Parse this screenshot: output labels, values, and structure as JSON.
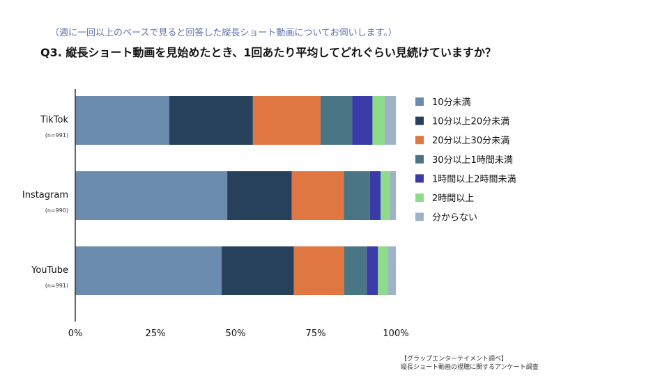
{
  "header": {
    "subtitle": "（週に一回以上のペースで見ると回答した縦長ショート動画についてお伺いします。）",
    "title": "Q3. 縦長ショート動画を見始めたとき、1回あたり平均してどれぐらい見続けていますか？"
  },
  "source": {
    "line1": "【グラップエンターテイメント調べ】",
    "line2": "縦長ショート動画の視聴に関するアンケート調査"
  },
  "chart_data": {
    "type": "bar",
    "orientation": "horizontal",
    "stacked": true,
    "title": "Q3. 縦長ショート動画を見始めたとき、1回あたり平均してどれぐらい見続けていますか？",
    "categories": [
      "TikTok",
      "Instagram",
      "YouTube"
    ],
    "category_notes": [
      "(n=991)",
      "(n=990)",
      "(n=991)"
    ],
    "xlim": [
      0,
      100
    ],
    "x_ticks": [
      "0%",
      "25%",
      "50%",
      "75%",
      "100%"
    ],
    "x_tick_values": [
      0,
      25,
      50,
      75,
      100
    ],
    "legend_position": "right",
    "series": [
      {
        "name": "10分未満",
        "color": "#6b8cae",
        "values": [
          29.3,
          47.6,
          45.8
        ]
      },
      {
        "name": "10分以上20分未満",
        "color": "#27405c",
        "values": [
          26.1,
          20.2,
          22.6
        ]
      },
      {
        "name": "20分以上30分未満",
        "color": "#e07742",
        "values": [
          21.1,
          16.3,
          15.7
        ]
      },
      {
        "name": "30分以上1時間未満",
        "color": "#4a7585",
        "values": [
          9.9,
          8.2,
          7.1
        ]
      },
      {
        "name": "1時間以上2時間未満",
        "color": "#3a3aa8",
        "values": [
          6.3,
          3.3,
          3.5
        ]
      },
      {
        "name": "2時間以上",
        "color": "#8edc8a",
        "values": [
          3.8,
          2.9,
          3.1
        ]
      },
      {
        "name": "分からない",
        "color": "#9fb3c6",
        "values": [
          3.5,
          1.9,
          2.5
        ]
      }
    ]
  }
}
